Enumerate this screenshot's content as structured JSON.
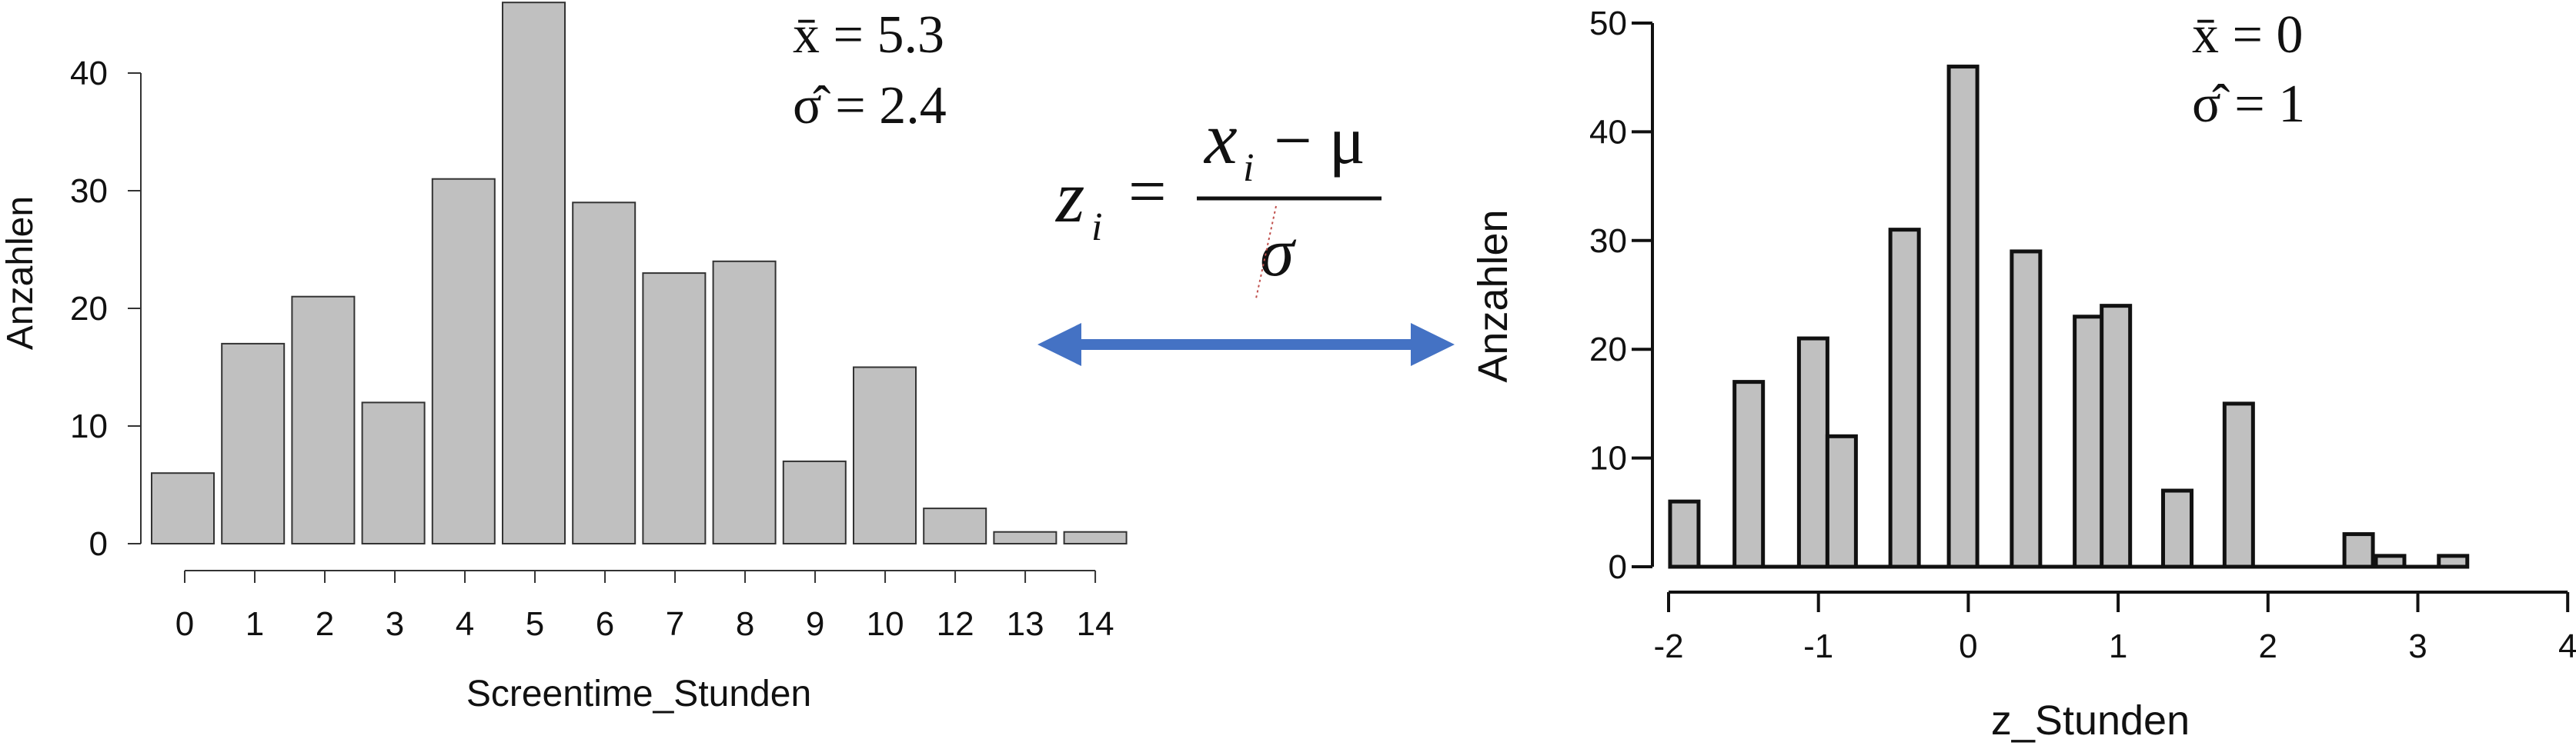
{
  "chart_data": [
    {
      "type": "bar",
      "categories": [
        "0",
        "1",
        "2",
        "3",
        "4",
        "5",
        "6",
        "7",
        "8",
        "9",
        "10",
        "12",
        "13",
        "14"
      ],
      "values": [
        6,
        17,
        21,
        12,
        31,
        46,
        29,
        23,
        24,
        7,
        15,
        3,
        1,
        1
      ],
      "xlabel": "Screentime_Stunden",
      "ylabel": "Anzahlen",
      "yticks": [
        "0",
        "10",
        "20",
        "30",
        "40"
      ],
      "ylim": [
        0,
        46
      ],
      "stats": {
        "mean": "x̄ = 5.3",
        "sd": "σ̂ = 2.4"
      },
      "bar_color": "#c0c0c0"
    },
    {
      "type": "bar",
      "bins": [
        {
          "x": -1.99,
          "value": 6
        },
        {
          "x": -1.56,
          "value": 17
        },
        {
          "x": -1.13,
          "value": 21
        },
        {
          "x": -0.94,
          "value": 12
        },
        {
          "x": -0.52,
          "value": 31
        },
        {
          "x": -0.13,
          "value": 46
        },
        {
          "x": 0.29,
          "value": 29
        },
        {
          "x": 0.71,
          "value": 23
        },
        {
          "x": 0.89,
          "value": 24
        },
        {
          "x": 1.3,
          "value": 7
        },
        {
          "x": 1.71,
          "value": 15
        },
        {
          "x": 2.51,
          "value": 3
        },
        {
          "x": 2.72,
          "value": 1
        },
        {
          "x": 3.14,
          "value": 1
        }
      ],
      "xlabel": "z_Stunden",
      "ylabel": "Anzahlen",
      "xticks": [
        "-2",
        "-1",
        "0",
        "1",
        "2",
        "3",
        "4"
      ],
      "yticks": [
        "0",
        "10",
        "20",
        "30",
        "40",
        "50"
      ],
      "xlim": [
        -2,
        4
      ],
      "ylim": [
        0,
        50
      ],
      "stats": {
        "mean": "x̄ = 0",
        "sd": "σ̂ = 1"
      },
      "bar_color": "#c0c0c0"
    }
  ],
  "formula": {
    "lhs": "z",
    "lhs_sub": "i",
    "equals": "=",
    "num": "x",
    "num_sub": "i",
    "minus": "− μ",
    "den": "σ"
  },
  "arrow_color": "#4472c4"
}
